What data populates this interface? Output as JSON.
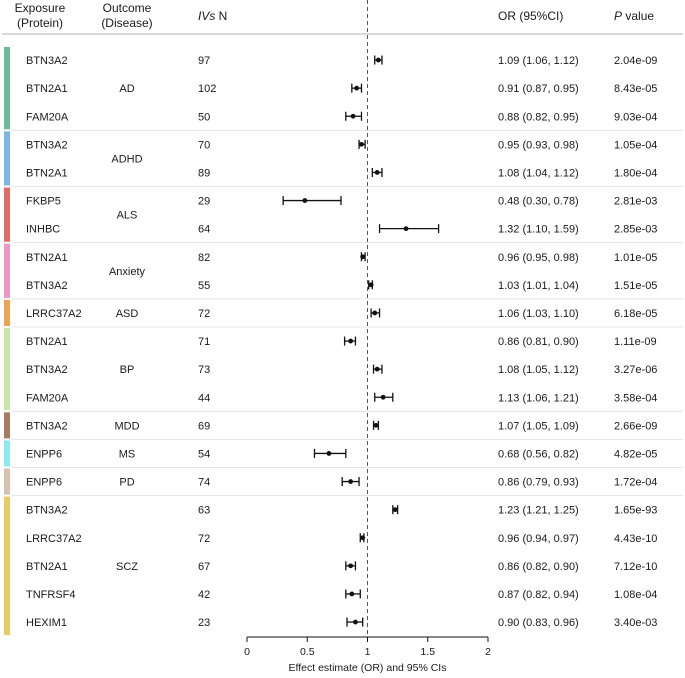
{
  "headers": {
    "exposure_line1": "Exposure",
    "exposure_line2": "(Protein)",
    "outcome_line1": "Outcome",
    "outcome_line2": "(Disease)",
    "ivs_italic": "IVs",
    "ivs_n": " N",
    "or_ci": "OR (95%CI)",
    "p_italic": "P",
    "p_rest": " value"
  },
  "chart_data": {
    "type": "forest",
    "xlabel": "Effect estimate (OR) and 95% CIs",
    "xlim": [
      0,
      2
    ],
    "xticks": [
      0,
      0.5,
      1,
      1.5,
      2
    ],
    "xtick_labels": [
      "0",
      "0.5",
      "1",
      "1.5",
      "2"
    ],
    "reference_line": 1,
    "groups": [
      {
        "outcome": "AD",
        "color": "#6fb99a",
        "rows": [
          {
            "exposure": "BTN3A2",
            "n": "97",
            "or": 1.09,
            "lo": 1.06,
            "hi": 1.12,
            "or_text": "1.09 (1.06, 1.12)",
            "p": "2.04e-09"
          },
          {
            "exposure": "BTN2A1",
            "n": "102",
            "or": 0.91,
            "lo": 0.87,
            "hi": 0.95,
            "or_text": "0.91 (0.87, 0.95)",
            "p": "8.43e-05"
          },
          {
            "exposure": "FAM20A",
            "n": "50",
            "or": 0.88,
            "lo": 0.82,
            "hi": 0.95,
            "or_text": "0.88 (0.82, 0.95)",
            "p": "9.03e-04"
          }
        ]
      },
      {
        "outcome": "ADHD",
        "color": "#7db5e3",
        "rows": [
          {
            "exposure": "BTN3A2",
            "n": "70",
            "or": 0.95,
            "lo": 0.93,
            "hi": 0.98,
            "or_text": "0.95 (0.93, 0.98)",
            "p": "1.05e-04"
          },
          {
            "exposure": "BTN2A1",
            "n": "89",
            "or": 1.08,
            "lo": 1.04,
            "hi": 1.12,
            "or_text": "1.08 (1.04, 1.12)",
            "p": "1.80e-04"
          }
        ]
      },
      {
        "outcome": "ALS",
        "color": "#e06c62",
        "rows": [
          {
            "exposure": "FKBP5",
            "n": "29",
            "or": 0.48,
            "lo": 0.3,
            "hi": 0.78,
            "or_text": "0.48 (0.30, 0.78)",
            "p": "2.81e-03"
          },
          {
            "exposure": "INHBC",
            "n": "64",
            "or": 1.32,
            "lo": 1.1,
            "hi": 1.59,
            "or_text": "1.32 (1.10, 1.59)",
            "p": "2.85e-03"
          }
        ]
      },
      {
        "outcome": "Anxiety",
        "color": "#ec97c8",
        "rows": [
          {
            "exposure": "BTN2A1",
            "n": "82",
            "or": 0.96,
            "lo": 0.95,
            "hi": 0.98,
            "or_text": "0.96 (0.95, 0.98)",
            "p": "1.01e-05"
          },
          {
            "exposure": "BTN3A2",
            "n": "55",
            "or": 1.03,
            "lo": 1.01,
            "hi": 1.04,
            "or_text": "1.03 (1.01, 1.04)",
            "p": "1.51e-05"
          }
        ]
      },
      {
        "outcome": "ASD",
        "color": "#eea353",
        "rows": [
          {
            "exposure": "LRRC37A2",
            "n": "72",
            "or": 1.06,
            "lo": 1.03,
            "hi": 1.1,
            "or_text": "1.06 (1.03, 1.10)",
            "p": "6.18e-05"
          }
        ]
      },
      {
        "outcome": "BP",
        "color": "#c7e6a2",
        "rows": [
          {
            "exposure": "BTN2A1",
            "n": "71",
            "or": 0.86,
            "lo": 0.81,
            "hi": 0.9,
            "or_text": "0.86 (0.81, 0.90)",
            "p": "1.11e-09"
          },
          {
            "exposure": "BTN3A2",
            "n": "73",
            "or": 1.08,
            "lo": 1.05,
            "hi": 1.12,
            "or_text": "1.08 (1.05, 1.12)",
            "p": "3.27e-06"
          },
          {
            "exposure": "FAM20A",
            "n": "44",
            "or": 1.13,
            "lo": 1.06,
            "hi": 1.21,
            "or_text": "1.13 (1.06, 1.21)",
            "p": "3.58e-04"
          }
        ]
      },
      {
        "outcome": "MDD",
        "color": "#a57d5e",
        "rows": [
          {
            "exposure": "BTN3A2",
            "n": "69",
            "or": 1.07,
            "lo": 1.05,
            "hi": 1.09,
            "or_text": "1.07 (1.05, 1.09)",
            "p": "2.66e-09"
          }
        ]
      },
      {
        "outcome": "MS",
        "color": "#8be9ef",
        "rows": [
          {
            "exposure": "ENPP6",
            "n": "54",
            "or": 0.68,
            "lo": 0.56,
            "hi": 0.82,
            "or_text": "0.68 (0.56, 0.82)",
            "p": "4.82e-05"
          }
        ]
      },
      {
        "outcome": "PD",
        "color": "#d8c1b1",
        "rows": [
          {
            "exposure": "ENPP6",
            "n": "74",
            "or": 0.86,
            "lo": 0.79,
            "hi": 0.93,
            "or_text": "0.86 (0.79, 0.93)",
            "p": "1.72e-04"
          }
        ]
      },
      {
        "outcome": "SCZ",
        "color": "#e5cd62",
        "rows": [
          {
            "exposure": "BTN3A2",
            "n": "63",
            "or": 1.23,
            "lo": 1.21,
            "hi": 1.25,
            "or_text": "1.23 (1.21, 1.25)",
            "p": "1.65e-93"
          },
          {
            "exposure": "LRRC37A2",
            "n": "72",
            "or": 0.96,
            "lo": 0.94,
            "hi": 0.97,
            "or_text": "0.96 (0.94, 0.97)",
            "p": "4.43e-10"
          },
          {
            "exposure": "BTN2A1",
            "n": "67",
            "or": 0.86,
            "lo": 0.82,
            "hi": 0.9,
            "or_text": "0.86 (0.82, 0.90)",
            "p": "7.12e-10"
          },
          {
            "exposure": "TNFRSF4",
            "n": "42",
            "or": 0.87,
            "lo": 0.82,
            "hi": 0.94,
            "or_text": "0.87 (0.82, 0.94)",
            "p": "1.08e-04"
          },
          {
            "exposure": "HEXIM1",
            "n": "23",
            "or": 0.9,
            "lo": 0.83,
            "hi": 0.96,
            "or_text": "0.90 (0.83, 0.96)",
            "p": "3.40e-03"
          }
        ]
      }
    ]
  }
}
